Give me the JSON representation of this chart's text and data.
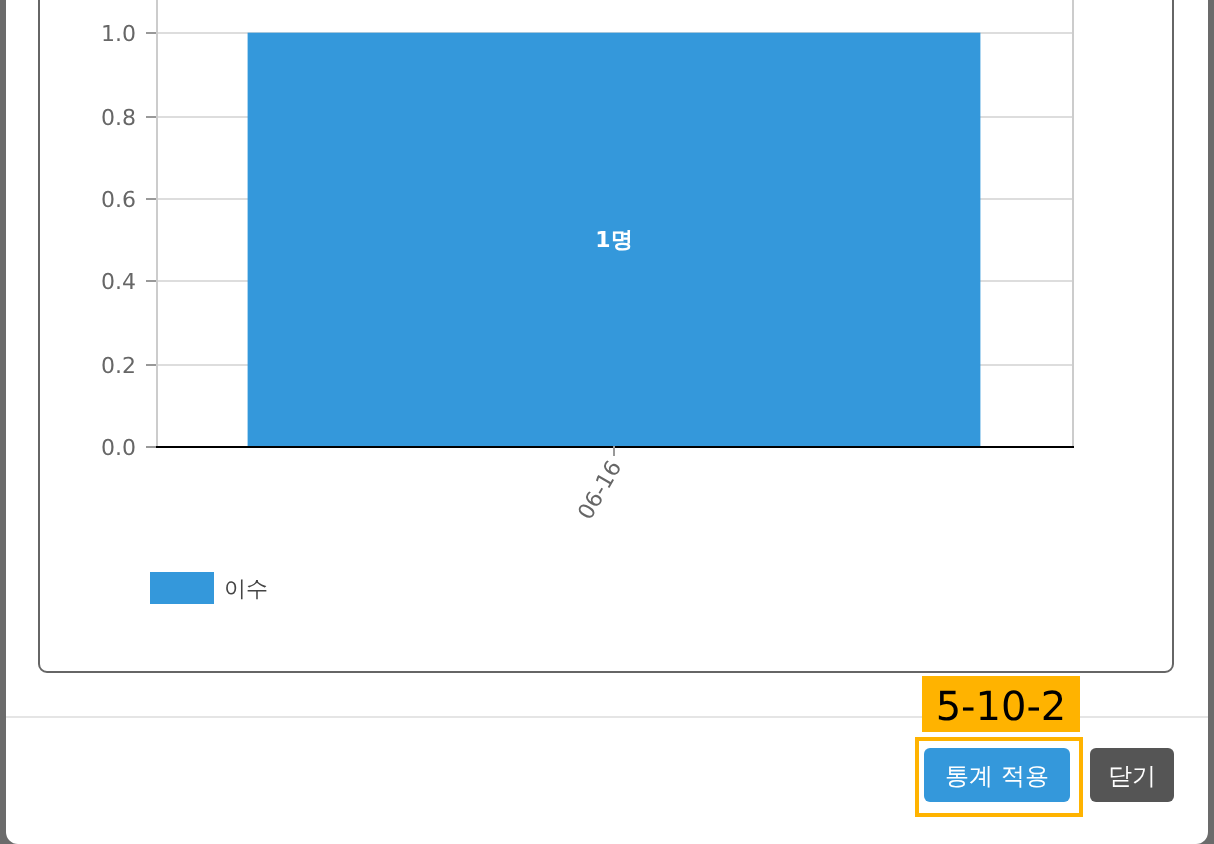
{
  "chart_data": {
    "type": "bar",
    "categories": [
      "06-16"
    ],
    "series": [
      {
        "name": "이수",
        "color": "#3498db",
        "values": [
          1
        ]
      }
    ],
    "value_labels": [
      "1명"
    ],
    "ylim": [
      0,
      1.2
    ],
    "yticks": [
      {
        "value": 0,
        "label": "0.0"
      },
      {
        "value": 0.2,
        "label": "0.2"
      },
      {
        "value": 0.4,
        "label": "0.4"
      },
      {
        "value": 0.6,
        "label": "0.6"
      },
      {
        "value": 0.8,
        "label": "0.8"
      },
      {
        "value": 1,
        "label": "1.0"
      }
    ],
    "grid": "y",
    "legend": "bottom left",
    "annotations": [
      "5-10-2",
      "통계 적용",
      "닫기"
    ]
  }
}
